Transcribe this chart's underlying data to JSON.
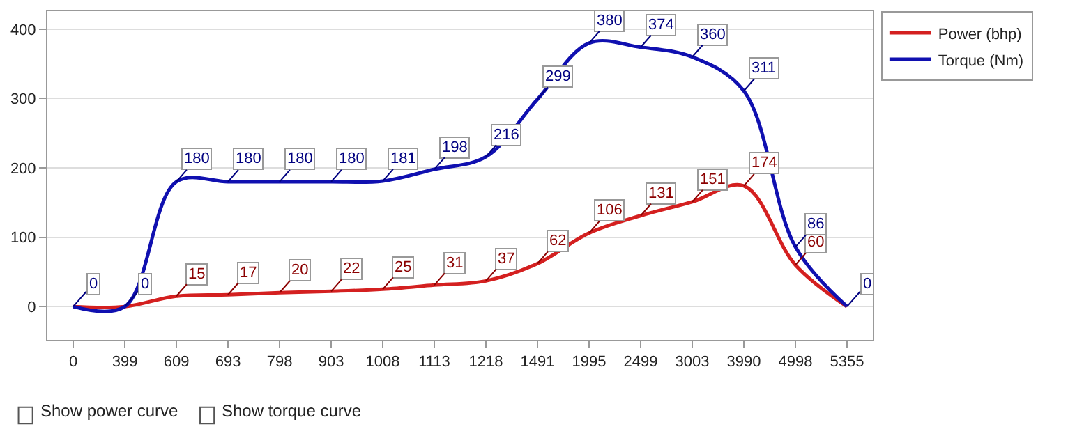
{
  "chart_data": {
    "type": "line",
    "categories": [
      "0",
      "399",
      "609",
      "693",
      "798",
      "903",
      "1008",
      "1113",
      "1218",
      "1491",
      "1995",
      "2499",
      "3003",
      "3990",
      "4998",
      "5355"
    ],
    "series": [
      {
        "name": "Power (bhp)",
        "color": "#d42020",
        "values": [
          0,
          0,
          15,
          17,
          20,
          22,
          25,
          31,
          37,
          62,
          106,
          131,
          151,
          174,
          60,
          0
        ],
        "value_labels": [
          null,
          null,
          "15",
          "17",
          "20",
          "22",
          "25",
          "31",
          "37",
          "62",
          "106",
          "131",
          "151",
          "174",
          "60",
          null
        ]
      },
      {
        "name": "Torque (Nm)",
        "color": "#1010b0",
        "values": [
          0,
          0,
          180,
          180,
          180,
          180,
          181,
          198,
          216,
          299,
          380,
          374,
          360,
          311,
          86,
          0
        ],
        "value_labels": [
          "0",
          "0",
          "180",
          "180",
          "180",
          "180",
          "181",
          "198",
          "216",
          "299",
          "380",
          "374",
          "360",
          "311",
          "86",
          "0"
        ]
      }
    ],
    "ylim": [
      -48,
      426
    ],
    "yticks": [
      0,
      100,
      200,
      300,
      400
    ],
    "grid": "y",
    "legend": "top right",
    "marker": "none",
    "line_style": "solid",
    "annotations": [
      "Show power curve",
      "Show torque curve"
    ]
  }
}
